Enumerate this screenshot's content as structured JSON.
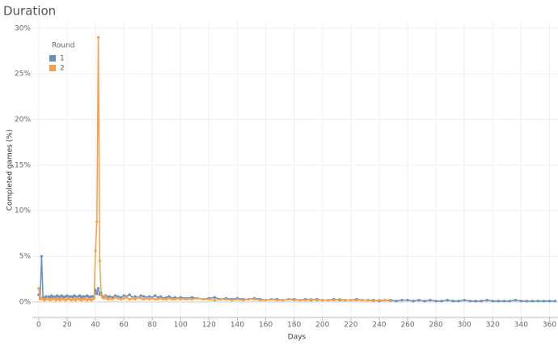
{
  "chart_data": {
    "type": "line",
    "title": "Duration",
    "y_label": "Completed games (%)",
    "x_label": "Days",
    "legend_title": "Round",
    "legend_position": "top-left",
    "grid": true,
    "xlim": [
      -4.5,
      366
    ],
    "ylim": [
      -1.7,
      30.7
    ],
    "xticks": [
      0,
      20,
      40,
      60,
      80,
      100,
      120,
      140,
      160,
      180,
      200,
      220,
      240,
      260,
      280,
      300,
      320,
      340,
      360
    ],
    "yticks": [
      {
        "value": 0,
        "label": "0%"
      },
      {
        "value": 5,
        "label": "5%"
      },
      {
        "value": 10,
        "label": "10%"
      },
      {
        "value": 15,
        "label": "15%"
      },
      {
        "value": 20,
        "label": "20%"
      },
      {
        "value": 25,
        "label": "25%"
      },
      {
        "value": 30,
        "label": "30%"
      }
    ],
    "series": [
      {
        "name": "1",
        "color": "#6a8fb8",
        "x": [
          0,
          1,
          2,
          3,
          4,
          5,
          6,
          7,
          8,
          9,
          10,
          11,
          12,
          13,
          14,
          15,
          16,
          17,
          18,
          19,
          20,
          21,
          22,
          23,
          24,
          25,
          26,
          27,
          28,
          29,
          30,
          31,
          32,
          33,
          34,
          35,
          36,
          37,
          38,
          39,
          40,
          41,
          42,
          43,
          44,
          45,
          46,
          47,
          48,
          49,
          50,
          52,
          54,
          56,
          58,
          60,
          62,
          64,
          66,
          68,
          70,
          72,
          74,
          76,
          78,
          80,
          82,
          84,
          86,
          88,
          90,
          92,
          94,
          96,
          98,
          100,
          104,
          108,
          112,
          116,
          120,
          124,
          128,
          132,
          136,
          140,
          144,
          148,
          152,
          156,
          160,
          164,
          168,
          172,
          176,
          180,
          184,
          188,
          192,
          196,
          200,
          204,
          208,
          212,
          216,
          220,
          224,
          228,
          232,
          236,
          240,
          244,
          248,
          252,
          256,
          260,
          264,
          268,
          272,
          276,
          280,
          284,
          288,
          292,
          296,
          300,
          304,
          308,
          312,
          316,
          320,
          324,
          328,
          332,
          336,
          340,
          344,
          348,
          352,
          356,
          360,
          364
        ],
        "values": [
          0.8,
          0.4,
          5.0,
          0.5,
          0.4,
          0.6,
          0.5,
          0.6,
          0.5,
          0.7,
          0.5,
          0.6,
          0.5,
          0.7,
          0.6,
          0.5,
          0.7,
          0.6,
          0.5,
          0.6,
          0.7,
          0.5,
          0.6,
          0.6,
          0.5,
          0.7,
          0.6,
          0.5,
          0.6,
          0.7,
          0.5,
          0.6,
          0.6,
          0.5,
          0.7,
          0.6,
          0.5,
          0.6,
          0.6,
          0.5,
          1.3,
          0.9,
          1.5,
          0.8,
          1.0,
          0.6,
          0.5,
          0.7,
          0.6,
          0.5,
          0.6,
          0.5,
          0.7,
          0.6,
          0.5,
          0.7,
          0.6,
          0.8,
          0.5,
          0.6,
          0.5,
          0.7,
          0.6,
          0.5,
          0.6,
          0.5,
          0.7,
          0.5,
          0.6,
          0.4,
          0.5,
          0.6,
          0.4,
          0.5,
          0.4,
          0.5,
          0.4,
          0.5,
          0.4,
          0.3,
          0.4,
          0.5,
          0.3,
          0.4,
          0.3,
          0.4,
          0.3,
          0.3,
          0.4,
          0.3,
          0.2,
          0.3,
          0.3,
          0.2,
          0.3,
          0.3,
          0.2,
          0.3,
          0.2,
          0.3,
          0.2,
          0.2,
          0.3,
          0.2,
          0.2,
          0.2,
          0.3,
          0.2,
          0.2,
          0.2,
          0.1,
          0.2,
          0.2,
          0.1,
          0.2,
          0.2,
          0.1,
          0.2,
          0.1,
          0.2,
          0.1,
          0.1,
          0.2,
          0.1,
          0.1,
          0.2,
          0.1,
          0.1,
          0.1,
          0.2,
          0.1,
          0.1,
          0.1,
          0.1,
          0.2,
          0.1,
          0.1,
          0.1,
          0.1,
          0.1,
          0.1,
          0.1
        ]
      },
      {
        "name": "2",
        "color": "#f5a04c",
        "x": [
          0,
          1,
          2,
          3,
          4,
          5,
          6,
          7,
          8,
          9,
          10,
          11,
          12,
          13,
          14,
          15,
          16,
          17,
          18,
          19,
          20,
          21,
          22,
          23,
          24,
          25,
          26,
          27,
          28,
          29,
          30,
          31,
          32,
          33,
          34,
          35,
          36,
          37,
          38,
          39,
          40,
          41,
          42,
          43,
          44,
          45,
          46,
          47,
          48,
          49,
          50,
          52,
          54,
          56,
          58,
          60,
          62,
          64,
          66,
          68,
          70,
          72,
          74,
          76,
          78,
          80,
          82,
          84,
          86,
          88,
          90,
          92,
          94,
          96,
          98,
          100,
          104,
          108,
          112,
          116,
          120,
          124,
          128,
          132,
          136,
          140,
          144,
          148,
          152,
          156,
          160,
          164,
          168,
          172,
          176,
          180,
          184,
          188,
          192,
          196,
          200,
          204,
          208,
          212,
          216,
          220,
          224,
          228,
          232,
          236,
          240,
          244,
          248
        ],
        "values": [
          1.5,
          0.3,
          0.4,
          0.3,
          0.2,
          0.3,
          0.4,
          0.3,
          0.2,
          0.3,
          0.3,
          0.4,
          0.2,
          0.3,
          0.3,
          0.2,
          0.4,
          0.3,
          0.3,
          0.2,
          0.3,
          0.4,
          0.3,
          0.2,
          0.3,
          0.3,
          0.2,
          0.4,
          0.3,
          0.3,
          0.2,
          0.3,
          0.3,
          0.4,
          0.2,
          0.3,
          0.3,
          0.2,
          0.3,
          0.4,
          5.6,
          8.8,
          29.0,
          4.5,
          0.8,
          0.5,
          0.4,
          0.6,
          0.4,
          0.3,
          0.4,
          0.3,
          0.5,
          0.4,
          0.3,
          0.4,
          0.5,
          0.3,
          0.4,
          0.3,
          0.5,
          0.4,
          0.3,
          0.4,
          0.3,
          0.4,
          0.3,
          0.3,
          0.4,
          0.3,
          0.3,
          0.4,
          0.3,
          0.3,
          0.4,
          0.3,
          0.3,
          0.3,
          0.4,
          0.3,
          0.3,
          0.2,
          0.3,
          0.3,
          0.2,
          0.3,
          0.2,
          0.3,
          0.3,
          0.2,
          0.2,
          0.3,
          0.2,
          0.2,
          0.3,
          0.2,
          0.2,
          0.2,
          0.3,
          0.2,
          0.2,
          0.2,
          0.2,
          0.3,
          0.2,
          0.2,
          0.2,
          0.2,
          0.2,
          0.1,
          0.2,
          0.2,
          0.1
        ]
      }
    ]
  }
}
